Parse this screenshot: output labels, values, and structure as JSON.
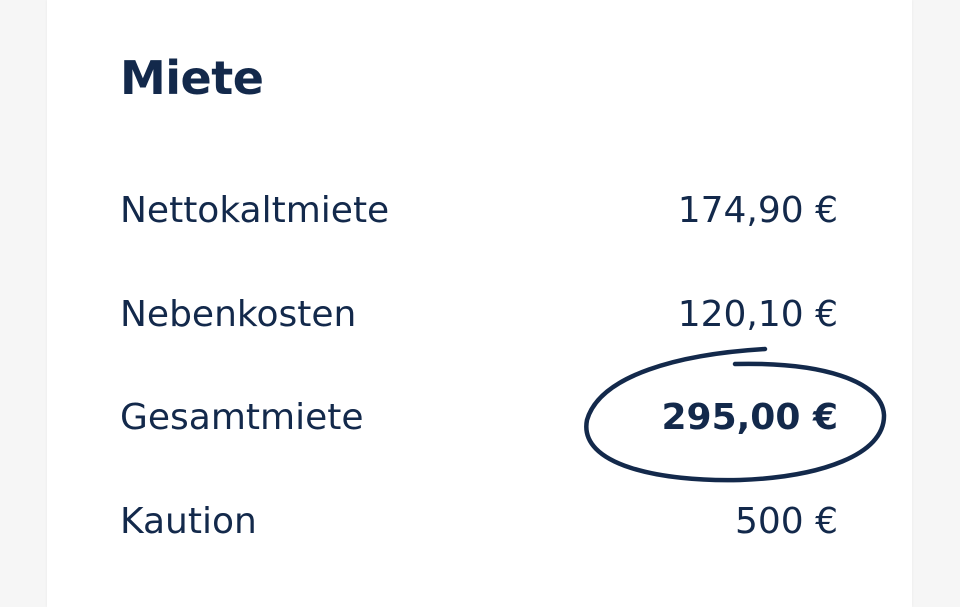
{
  "section": {
    "title": "Miete",
    "rows": [
      {
        "label": "Nettokaltmiete",
        "value": "174,90 €"
      },
      {
        "label": "Nebenkosten",
        "value": "120,10 €"
      },
      {
        "label": "Gesamtmiete",
        "value": "295,00 €",
        "highlighted": true
      },
      {
        "label": "Kaution",
        "value": "500 €"
      }
    ]
  },
  "colors": {
    "text": "#13294b",
    "background": "#f6f6f6",
    "card": "#ffffff"
  }
}
